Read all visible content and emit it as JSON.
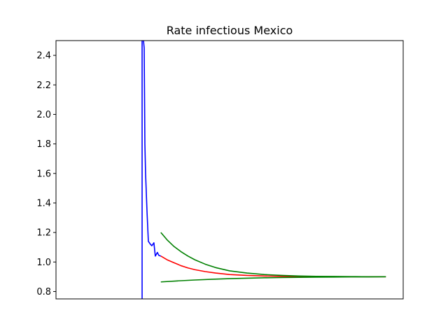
{
  "chart_data": {
    "type": "line",
    "title": "Rate infectious Mexico",
    "xlabel": "",
    "ylabel": "",
    "xticks_visible": false,
    "xlim": [
      0,
      100
    ],
    "ylim": [
      0.75,
      2.5
    ],
    "yticks": [
      0.8,
      1.0,
      1.2,
      1.4,
      1.6,
      1.8,
      2.0,
      2.2,
      2.4
    ],
    "ytick_labels": [
      "0.8",
      "1.0",
      "1.2",
      "1.4",
      "1.6",
      "1.8",
      "2.0",
      "2.2",
      "2.4"
    ],
    "grid": false,
    "legend": "none",
    "series": [
      {
        "color": "#0000ff",
        "x": [
          24.8,
          24.8,
          25.2,
          25.4,
          25.6,
          25.8,
          26.2,
          26.6,
          27.2,
          27.6,
          28.2,
          28.6,
          29.2,
          29.6,
          30.2
        ],
        "y": [
          0.7,
          2.5,
          2.5,
          2.45,
          1.8,
          1.6,
          1.35,
          1.14,
          1.12,
          1.11,
          1.13,
          1.04,
          1.065,
          1.045,
          1.04
        ]
      },
      {
        "color": "#ff0000",
        "x": [
          30.2,
          32,
          34,
          36,
          38,
          40,
          43,
          46,
          50,
          55,
          60,
          65,
          70,
          75,
          80,
          85,
          90,
          95
        ],
        "y": [
          1.04,
          1.015,
          0.995,
          0.975,
          0.96,
          0.948,
          0.935,
          0.925,
          0.915,
          0.909,
          0.905,
          0.903,
          0.902,
          0.901,
          0.9,
          0.9,
          0.9,
          0.9
        ]
      },
      {
        "color": "#008000",
        "x": [
          30.2,
          32,
          34,
          36,
          38,
          40,
          43,
          46,
          50,
          55,
          60,
          65,
          70,
          75,
          80,
          85,
          90,
          95
        ],
        "y": [
          1.2,
          1.15,
          1.105,
          1.07,
          1.04,
          1.015,
          0.985,
          0.962,
          0.94,
          0.925,
          0.915,
          0.909,
          0.905,
          0.903,
          0.902,
          0.901,
          0.9,
          0.9
        ]
      },
      {
        "color": "#008000",
        "x": [
          30.2,
          35,
          40,
          45,
          50,
          55,
          60,
          65,
          70,
          75,
          80,
          85,
          90,
          95
        ],
        "y": [
          0.865,
          0.872,
          0.878,
          0.883,
          0.887,
          0.89,
          0.893,
          0.895,
          0.896,
          0.897,
          0.898,
          0.899,
          0.899,
          0.9
        ]
      }
    ]
  }
}
